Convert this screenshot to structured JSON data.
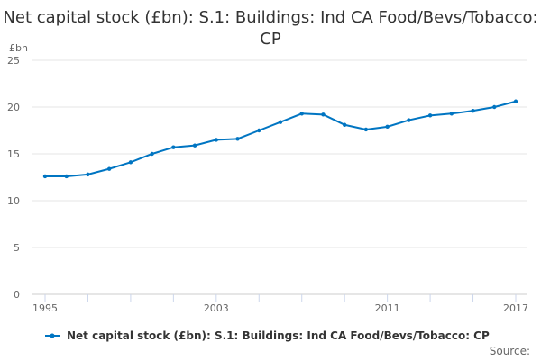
{
  "chart_data": {
    "type": "line",
    "title": "Net capital stock (£bn): S.1: Buildings: Ind CA Food/Bevs/Tobacco: CP",
    "ylabel": "£bn",
    "xlabel": "",
    "ylim": [
      0,
      25
    ],
    "yticks": [
      "0",
      "5",
      "10",
      "15",
      "20",
      "25"
    ],
    "xtick_labels": [
      "1995",
      "2003",
      "2011",
      "2017"
    ],
    "grid": true,
    "legend_position": "bottom",
    "color": "#0075c2",
    "x": [
      1995,
      1996,
      1997,
      1998,
      1999,
      2000,
      2001,
      2002,
      2003,
      2004,
      2005,
      2006,
      2007,
      2008,
      2009,
      2010,
      2011,
      2012,
      2013,
      2014,
      2015,
      2016,
      2017
    ],
    "series": [
      {
        "name": "Net capital stock (£bn): S.1: Buildings: Ind CA Food/Bevs/Tobacco: CP",
        "values": [
          12.6,
          12.6,
          12.8,
          13.4,
          14.1,
          15.0,
          15.7,
          15.9,
          16.5,
          16.6,
          17.5,
          18.4,
          19.3,
          19.2,
          18.1,
          17.6,
          17.9,
          18.6,
          19.1,
          19.3,
          19.6,
          20.0,
          20.6
        ]
      }
    ]
  },
  "source_label": "Source:"
}
